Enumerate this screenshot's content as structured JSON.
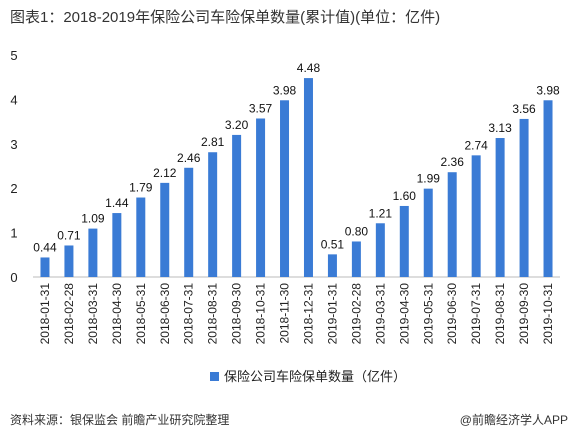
{
  "title": "图表1：2018-2019年保险公司车险保单数量(累计值)(单位：亿件)",
  "footer": {
    "source": "资料来源：银保监会 前瞻产业研究院整理",
    "brand": "@前瞻经济学人APP"
  },
  "colors": {
    "bar": "#3a7bd5",
    "axis": "#bbbbbb"
  },
  "chart_data": {
    "type": "bar",
    "title": "图表1：2018-2019年保险公司车险保单数量(累计值)(单位：亿件)",
    "categories": [
      "2018-01-31",
      "2018-02-28",
      "2018-03-31",
      "2018-04-30",
      "2018-05-31",
      "2018-06-30",
      "2018-07-31",
      "2018-08-31",
      "2018-09-30",
      "2018-10-31",
      "2018-11-30",
      "2018-12-31",
      "2019-01-31",
      "2019-02-28",
      "2019-03-31",
      "2019-04-30",
      "2019-05-31",
      "2019-06-30",
      "2019-07-31",
      "2019-08-31",
      "2019-09-30",
      "2019-10-31"
    ],
    "series": [
      {
        "name": "保险公司车险保单数量（亿件）",
        "values": [
          0.44,
          0.71,
          1.09,
          1.44,
          1.79,
          2.12,
          2.46,
          2.81,
          3.2,
          3.57,
          3.98,
          4.48,
          0.51,
          0.8,
          1.21,
          1.6,
          1.99,
          2.36,
          2.74,
          3.13,
          3.56,
          3.98
        ]
      }
    ],
    "value_labels": [
      "0.44",
      "0.71",
      "1.09",
      "1.44",
      "1.79",
      "2.12",
      "2.46",
      "2.81",
      "3.20",
      "3.57",
      "3.98",
      "4.48",
      "0.51",
      "0.80",
      "1.21",
      "1.60",
      "1.99",
      "2.36",
      "2.74",
      "3.13",
      "3.56",
      "3.98"
    ],
    "ylim": [
      0,
      5
    ],
    "yticks": [
      0,
      1,
      2,
      3,
      4,
      5
    ],
    "xlabel": "",
    "ylabel": "",
    "legend": "bottom",
    "grid": false
  }
}
